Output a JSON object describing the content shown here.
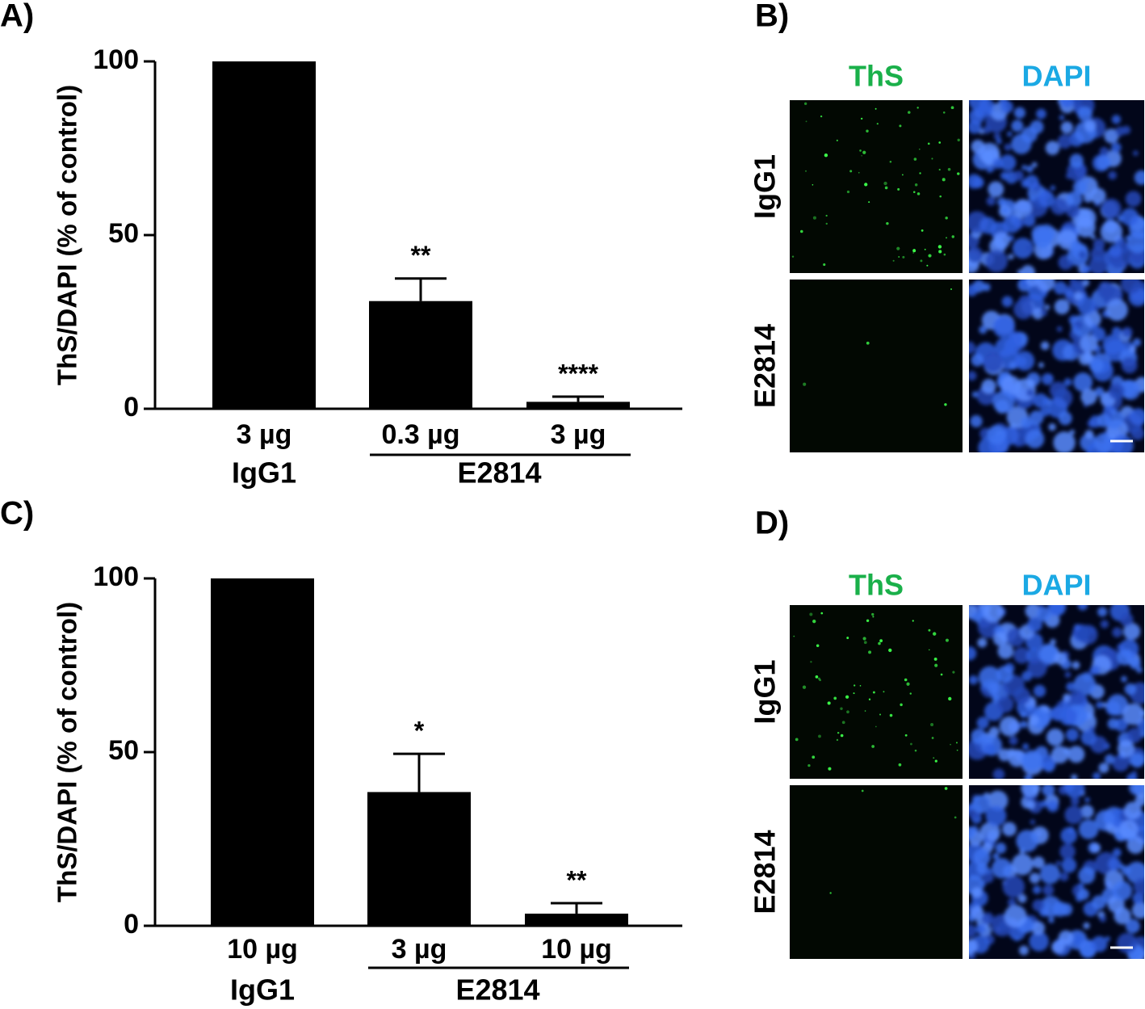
{
  "chart_data": [
    {
      "type": "bar",
      "panel_label": "A)",
      "y_label": "ThS/DAPI (% of control)",
      "categories": [
        "3 µg",
        "0.3 µg",
        "3 µg"
      ],
      "group_labels": [
        "IgG1",
        "E2814"
      ],
      "values": [
        100,
        31,
        2
      ],
      "errors": [
        null,
        6.5,
        1.5
      ],
      "annotations": [
        null,
        "**",
        "****"
      ],
      "color": "#000000",
      "ylim": [
        0,
        100
      ],
      "yticks": [
        0,
        50,
        100
      ]
    },
    {
      "type": "bar",
      "panel_label": "C)",
      "y_label": "ThS/DAPI (% of control)",
      "categories": [
        "10 µg",
        "3 µg",
        "10 µg"
      ],
      "group_labels": [
        "IgG1",
        "E2814"
      ],
      "values": [
        100,
        38.5,
        3.5
      ],
      "errors": [
        null,
        11,
        3
      ],
      "annotations": [
        null,
        "*",
        "**"
      ],
      "color": "#000000",
      "ylim": [
        0,
        100
      ],
      "yticks": [
        0,
        50,
        100
      ]
    }
  ],
  "image_panels": [
    {
      "panel_label": "B)",
      "columns": [
        "ThS",
        "DAPI"
      ],
      "rows": [
        "IgG1",
        "E2814"
      ]
    },
    {
      "panel_label": "D)",
      "columns": [
        "ThS",
        "DAPI"
      ],
      "rows": [
        "IgG1",
        "E2814"
      ]
    }
  ]
}
